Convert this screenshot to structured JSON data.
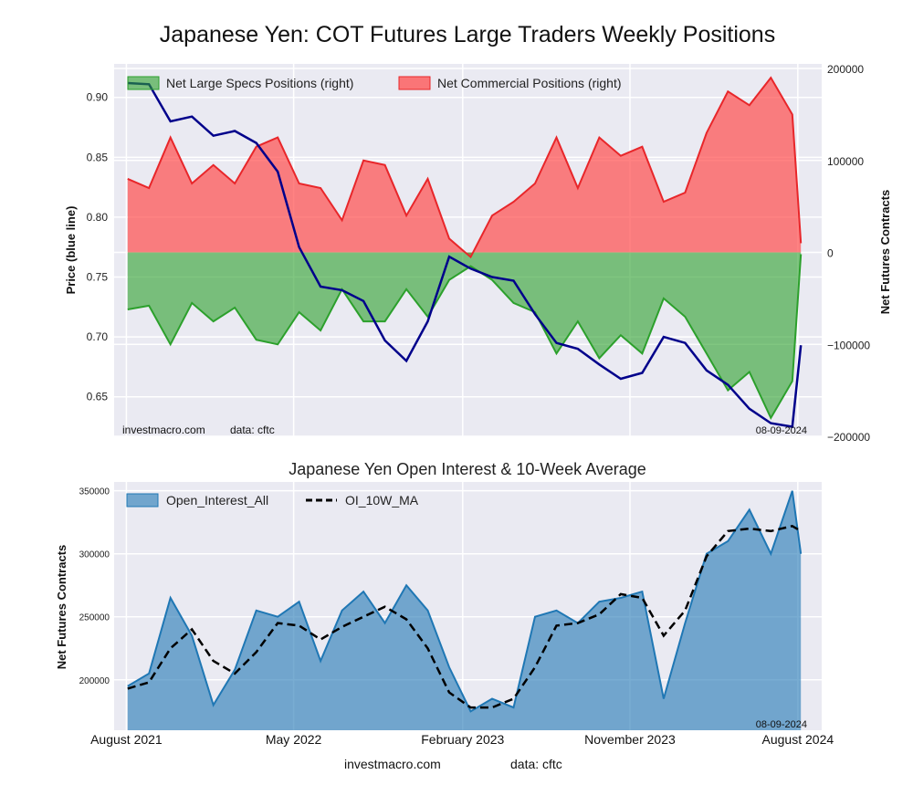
{
  "title": "Japanese Yen: COT Futures Large Traders Weekly Positions",
  "footer": {
    "source": "investmacro.com",
    "data": "data: cftc"
  },
  "chart_data": [
    {
      "type": "area",
      "title": "Japanese Yen: COT Futures Large Traders Weekly Positions",
      "ylabel_left": "Price (blue line)",
      "ylabel_right": "Net Futures Contracts",
      "ylim_left": [
        0.617,
        0.928
      ],
      "ylim_right": [
        -200000,
        205000
      ],
      "yticks_left": [
        "0.65",
        "0.70",
        "0.75",
        "0.80",
        "0.85",
        "0.90"
      ],
      "yticks_left_values": [
        0.65,
        0.7,
        0.75,
        0.8,
        0.85,
        0.9
      ],
      "yticks_right": [
        "−200000",
        "−100000",
        "0",
        "100000",
        "200000"
      ],
      "yticks_right_values": [
        -200000,
        -100000,
        0,
        100000,
        200000
      ],
      "grid": true,
      "legend_position": "top",
      "source_note": "investmacro.com",
      "data_note": "data: cftc",
      "date_note": "08-09-2024",
      "series": [
        {
          "name": "Net Large Specs Positions (right)",
          "color": "#2ca02c",
          "x": [
            "2021-08-03",
            "2021-09-07",
            "2021-10-12",
            "2021-11-16",
            "2021-12-21",
            "2022-01-25",
            "2022-03-01",
            "2022-04-05",
            "2022-05-10",
            "2022-06-14",
            "2022-07-19",
            "2022-08-23",
            "2022-09-27",
            "2022-11-01",
            "2022-12-06",
            "2023-01-10",
            "2023-02-14",
            "2023-03-21",
            "2023-04-25",
            "2023-05-30",
            "2023-07-04",
            "2023-08-08",
            "2023-09-12",
            "2023-10-17",
            "2023-11-21",
            "2023-12-26",
            "2024-01-30",
            "2024-03-05",
            "2024-04-09",
            "2024-05-14",
            "2024-06-18",
            "2024-07-23",
            "2024-08-06"
          ],
          "values": [
            -62000,
            -58000,
            -100000,
            -55000,
            -75000,
            -60000,
            -95000,
            -100000,
            -65000,
            -85000,
            -40000,
            -75000,
            -75000,
            -40000,
            -70000,
            -30000,
            -15000,
            -30000,
            -55000,
            -65000,
            -110000,
            -75000,
            -115000,
            -90000,
            -110000,
            -50000,
            -70000,
            -110000,
            -150000,
            -130000,
            -180000,
            -140000,
            -2000
          ]
        },
        {
          "name": "Net Commercial Positions (right)",
          "color": "#e8262a",
          "x": [
            "2021-08-03",
            "2021-09-07",
            "2021-10-12",
            "2021-11-16",
            "2021-12-21",
            "2022-01-25",
            "2022-03-01",
            "2022-04-05",
            "2022-05-10",
            "2022-06-14",
            "2022-07-19",
            "2022-08-23",
            "2022-09-27",
            "2022-11-01",
            "2022-12-06",
            "2023-01-10",
            "2023-02-14",
            "2023-03-21",
            "2023-04-25",
            "2023-05-30",
            "2023-07-04",
            "2023-08-08",
            "2023-09-12",
            "2023-10-17",
            "2023-11-21",
            "2023-12-26",
            "2024-01-30",
            "2024-03-05",
            "2024-04-09",
            "2024-05-14",
            "2024-06-18",
            "2024-07-23",
            "2024-08-06"
          ],
          "values": [
            80000,
            70000,
            125000,
            75000,
            95000,
            75000,
            115000,
            125000,
            75000,
            70000,
            35000,
            100000,
            95000,
            40000,
            80000,
            15000,
            -5000,
            40000,
            55000,
            75000,
            125000,
            70000,
            125000,
            105000,
            115000,
            55000,
            65000,
            130000,
            175000,
            160000,
            190000,
            150000,
            10000
          ]
        },
        {
          "name": "Price",
          "color": "#00008b",
          "x": [
            "2021-08-03",
            "2021-09-07",
            "2021-10-12",
            "2021-11-16",
            "2021-12-21",
            "2022-01-25",
            "2022-03-01",
            "2022-04-05",
            "2022-05-10",
            "2022-06-14",
            "2022-07-19",
            "2022-08-23",
            "2022-09-27",
            "2022-11-01",
            "2022-12-06",
            "2023-01-10",
            "2023-02-14",
            "2023-03-21",
            "2023-04-25",
            "2023-05-30",
            "2023-07-04",
            "2023-08-08",
            "2023-09-12",
            "2023-10-17",
            "2023-11-21",
            "2023-12-26",
            "2024-01-30",
            "2024-03-05",
            "2024-04-09",
            "2024-05-14",
            "2024-06-18",
            "2024-07-23",
            "2024-08-06"
          ],
          "values": [
            0.912,
            0.911,
            0.88,
            0.884,
            0.868,
            0.872,
            0.862,
            0.838,
            0.775,
            0.742,
            0.739,
            0.73,
            0.697,
            0.68,
            0.713,
            0.767,
            0.757,
            0.75,
            0.747,
            0.719,
            0.695,
            0.69,
            0.677,
            0.665,
            0.67,
            0.7,
            0.695,
            0.672,
            0.66,
            0.64,
            0.628,
            0.625,
            0.693
          ]
        }
      ]
    },
    {
      "type": "area",
      "title": "Japanese Yen Open Interest & 10-Week Average",
      "ylabel": "Net Futures Contracts",
      "ylim": [
        160000,
        357000
      ],
      "yticks": [
        "200000",
        "250000",
        "300000",
        "350000"
      ],
      "yticks_values": [
        200000,
        250000,
        300000,
        350000
      ],
      "xticks": [
        "August 2021",
        "May 2022",
        "February 2023",
        "November 2023",
        "August 2024"
      ],
      "xticks_dates": [
        "2021-08-01",
        "2022-05-01",
        "2023-02-01",
        "2023-11-01",
        "2024-08-01"
      ],
      "grid": true,
      "legend_position": "top-left",
      "date_note": "08-09-2024",
      "series": [
        {
          "name": "Open_Interest_All",
          "color": "#1f77b4",
          "x": [
            "2021-08-03",
            "2021-09-07",
            "2021-10-12",
            "2021-11-16",
            "2021-12-21",
            "2022-01-25",
            "2022-03-01",
            "2022-04-05",
            "2022-05-10",
            "2022-06-14",
            "2022-07-19",
            "2022-08-23",
            "2022-09-27",
            "2022-11-01",
            "2022-12-06",
            "2023-01-10",
            "2023-02-14",
            "2023-03-21",
            "2023-04-25",
            "2023-05-30",
            "2023-07-04",
            "2023-08-08",
            "2023-09-12",
            "2023-10-17",
            "2023-11-21",
            "2023-12-26",
            "2024-01-30",
            "2024-03-05",
            "2024-04-09",
            "2024-05-14",
            "2024-06-18",
            "2024-07-23",
            "2024-08-06"
          ],
          "values": [
            195000,
            205000,
            265000,
            235000,
            180000,
            208000,
            255000,
            250000,
            262000,
            215000,
            255000,
            270000,
            245000,
            275000,
            255000,
            210000,
            175000,
            185000,
            178000,
            250000,
            255000,
            245000,
            262000,
            265000,
            270000,
            185000,
            245000,
            300000,
            310000,
            335000,
            300000,
            350000,
            300000
          ]
        },
        {
          "name": "OI_10W_MA",
          "color": "#000000",
          "x": [
            "2021-08-03",
            "2021-09-07",
            "2021-10-12",
            "2021-11-16",
            "2021-12-21",
            "2022-01-25",
            "2022-03-01",
            "2022-04-05",
            "2022-05-10",
            "2022-06-14",
            "2022-07-19",
            "2022-08-23",
            "2022-09-27",
            "2022-11-01",
            "2022-12-06",
            "2023-01-10",
            "2023-02-14",
            "2023-03-21",
            "2023-04-25",
            "2023-05-30",
            "2023-07-04",
            "2023-08-08",
            "2023-09-12",
            "2023-10-17",
            "2023-11-21",
            "2023-12-26",
            "2024-01-30",
            "2024-03-05",
            "2024-04-09",
            "2024-05-14",
            "2024-06-18",
            "2024-07-23",
            "2024-08-06"
          ],
          "values": [
            193000,
            198000,
            225000,
            240000,
            215000,
            205000,
            222000,
            245000,
            243000,
            232000,
            242000,
            250000,
            258000,
            248000,
            225000,
            190000,
            178000,
            178000,
            185000,
            210000,
            243000,
            245000,
            252000,
            268000,
            265000,
            235000,
            255000,
            298000,
            318000,
            320000,
            318000,
            322000,
            318000
          ]
        }
      ]
    }
  ]
}
